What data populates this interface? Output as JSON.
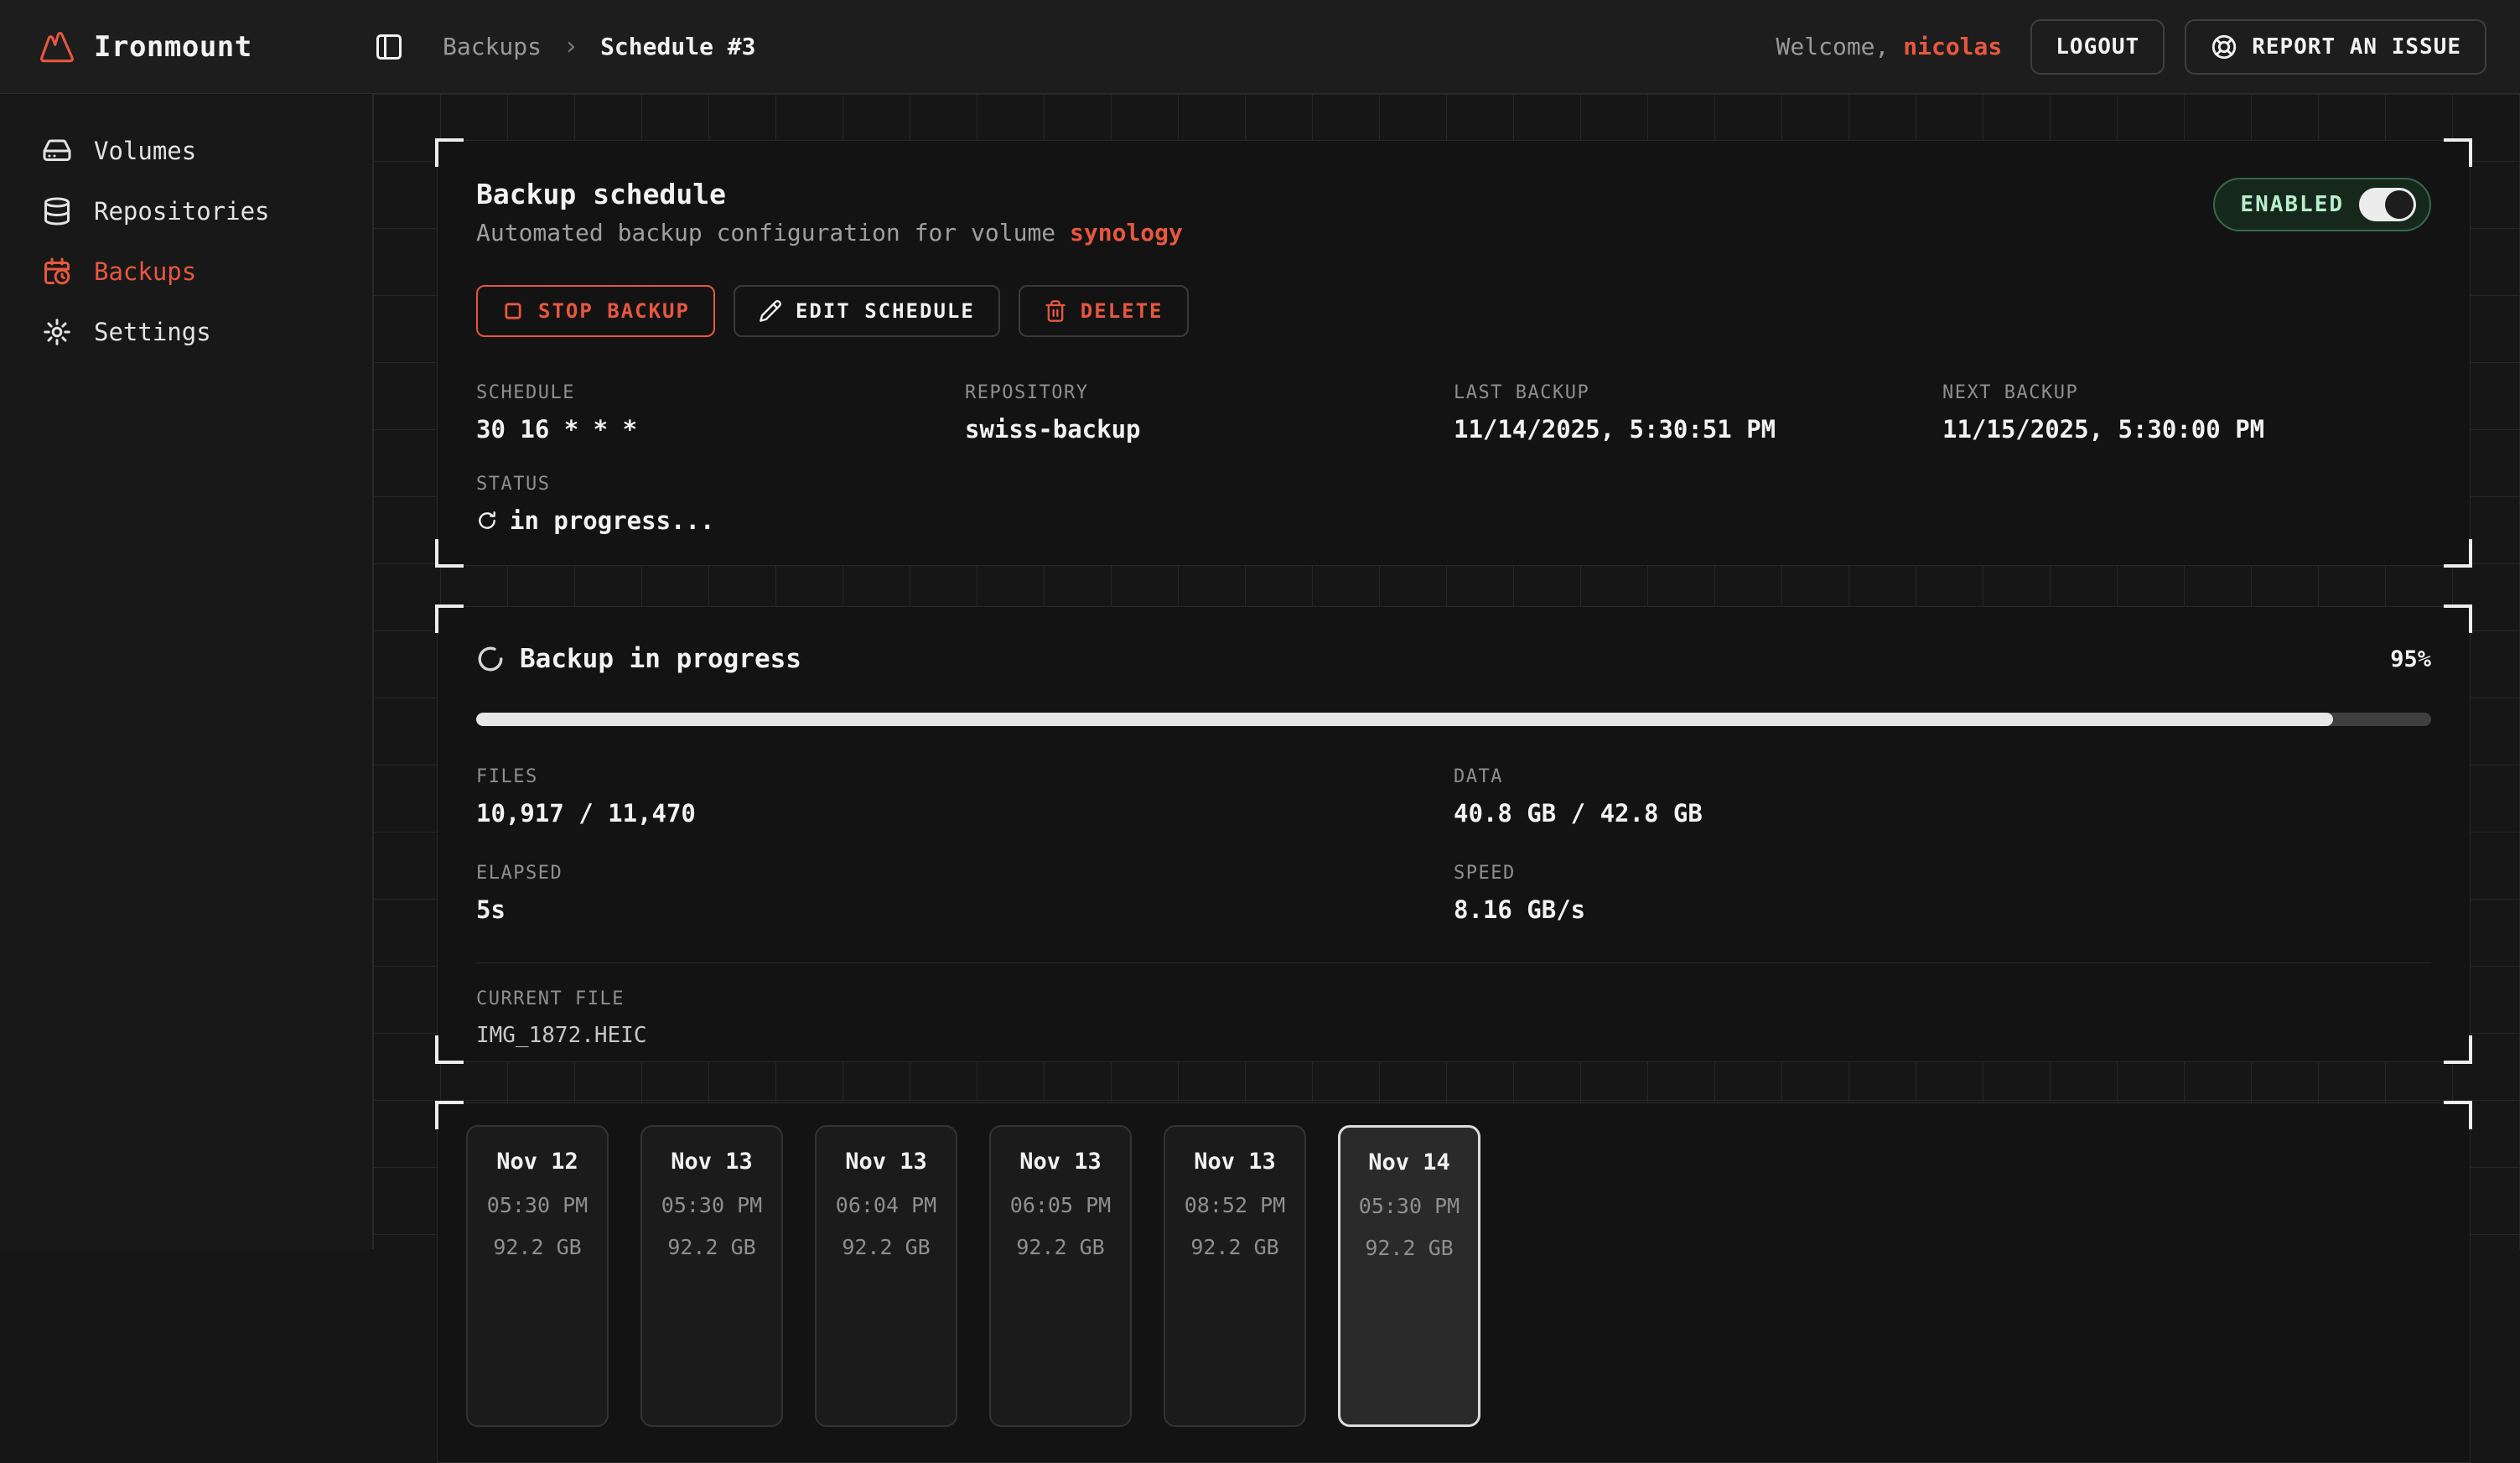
{
  "topbar": {
    "brand": "Ironmount",
    "breadcrumb": {
      "section": "Backups",
      "separator": "›",
      "page": "Schedule #3"
    },
    "welcome_prefix": "Welcome,",
    "username": "nicolas",
    "logout_label": "LOGOUT",
    "report_label": "REPORT AN ISSUE"
  },
  "sidebar": {
    "items": [
      {
        "label": "Volumes",
        "icon": "hard-drive-icon",
        "active": false
      },
      {
        "label": "Repositories",
        "icon": "database-icon",
        "active": false
      },
      {
        "label": "Backups",
        "icon": "calendar-clock-icon",
        "active": true
      },
      {
        "label": "Settings",
        "icon": "gear-icon",
        "active": false
      }
    ]
  },
  "schedule_card": {
    "title": "Backup schedule",
    "subtitle_prefix": "Automated backup configuration for volume ",
    "volume_name": "synology",
    "enabled_label": "ENABLED",
    "enabled": true,
    "buttons": {
      "stop": "STOP BACKUP",
      "edit": "EDIT SCHEDULE",
      "delete": "DELETE"
    },
    "fields": [
      {
        "label": "SCHEDULE",
        "value": "30 16 * * *"
      },
      {
        "label": "REPOSITORY",
        "value": "swiss-backup"
      },
      {
        "label": "LAST BACKUP",
        "value": "11/14/2025, 5:30:51 PM"
      },
      {
        "label": "NEXT BACKUP",
        "value": "11/15/2025, 5:30:00 PM"
      }
    ],
    "status": {
      "label": "STATUS",
      "value": "in progress..."
    }
  },
  "progress_card": {
    "title": "Backup in progress",
    "percent_label": "95%",
    "percent_value": 95,
    "stats": [
      {
        "label": "FILES",
        "value": "10,917 / 11,470"
      },
      {
        "label": "DATA",
        "value": "40.8 GB / 42.8 GB"
      },
      {
        "label": "ELAPSED",
        "value": "5s"
      },
      {
        "label": "SPEED",
        "value": "8.16 GB/s"
      }
    ],
    "current_file": {
      "label": "CURRENT FILE",
      "value": "IMG_1872.HEIC"
    }
  },
  "snapshots": {
    "items": [
      {
        "date": "Nov 12",
        "time": "05:30 PM",
        "size": "92.2 GB",
        "selected": false
      },
      {
        "date": "Nov 13",
        "time": "05:30 PM",
        "size": "92.2 GB",
        "selected": false
      },
      {
        "date": "Nov 13",
        "time": "06:04 PM",
        "size": "92.2 GB",
        "selected": false
      },
      {
        "date": "Nov 13",
        "time": "06:05 PM",
        "size": "92.2 GB",
        "selected": false
      },
      {
        "date": "Nov 13",
        "time": "08:52 PM",
        "size": "92.2 GB",
        "selected": false
      },
      {
        "date": "Nov 14",
        "time": "05:30 PM",
        "size": "92.2 GB",
        "selected": true
      }
    ]
  },
  "colors": {
    "accent_orange": "#e8573f",
    "enabled_green_text": "#b7efca",
    "enabled_green_bg": "#16281c",
    "progress_fill": "#e6e6e6",
    "card_bg": "#131313",
    "grid_line": "#272727"
  }
}
